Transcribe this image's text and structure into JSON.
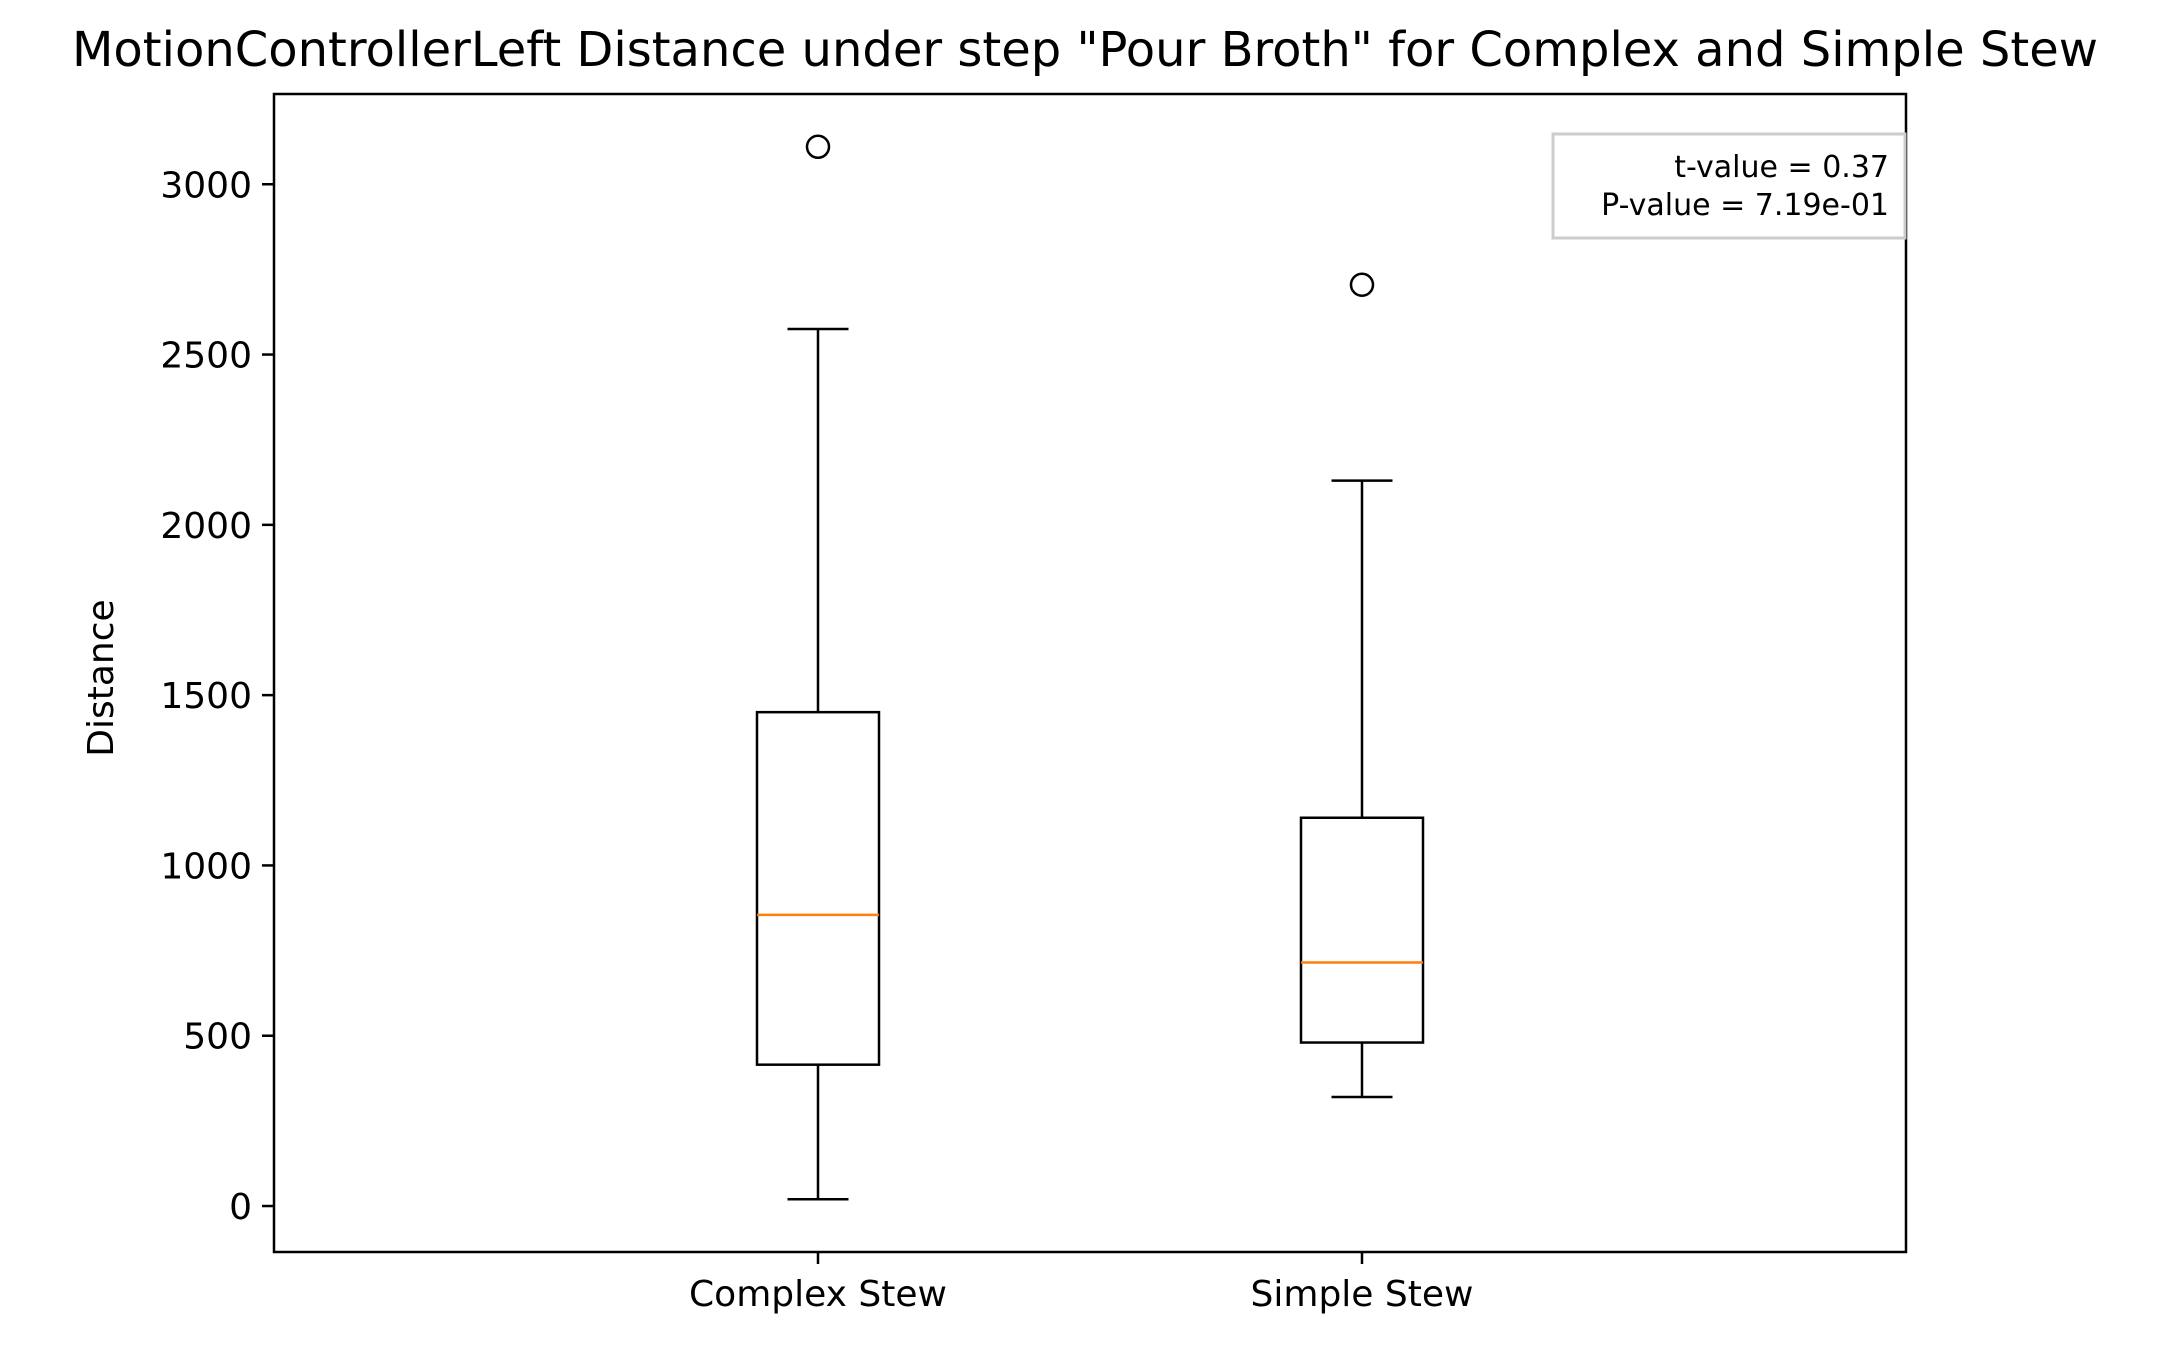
{
  "chart_data": {
    "type": "box",
    "title": "MotionControllerLeft Distance under step \"Pour Broth\" for Complex and Simple Stew",
    "xlabel": "",
    "ylabel": "Distance",
    "ylim": [
      -135,
      3265
    ],
    "yticks": [
      0,
      500,
      1000,
      1500,
      2000,
      2500,
      3000
    ],
    "grid": false,
    "categories": [
      "Complex Stew",
      "Simple Stew"
    ],
    "boxes": [
      {
        "category": "Complex Stew",
        "whisker_low": 20,
        "q1": 415,
        "median": 855,
        "q3": 1450,
        "whisker_high": 2575,
        "outliers": [
          3110
        ]
      },
      {
        "category": "Simple Stew",
        "whisker_low": 320,
        "q1": 480,
        "median": 715,
        "q3": 1140,
        "whisker_high": 2130,
        "outliers": [
          2705
        ]
      }
    ],
    "annotation": {
      "placement": "top-right",
      "lines": [
        "t-value = 0.37",
        "P-value = 7.19e-01"
      ]
    },
    "colors": {
      "box": "#000000",
      "median": "#ff7f0e",
      "annotation_border": "#cccccc"
    }
  }
}
